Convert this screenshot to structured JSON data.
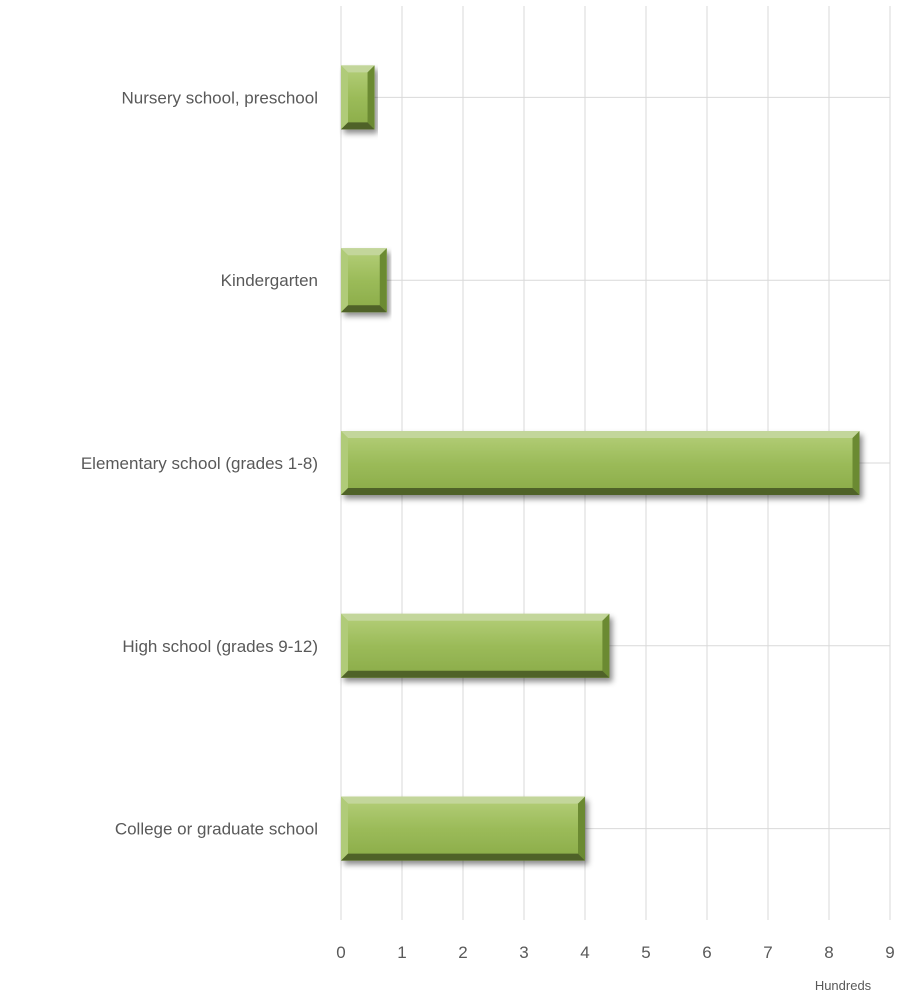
{
  "chart_data": {
    "type": "bar",
    "orientation": "horizontal",
    "categories": [
      "Nursery school, preschool",
      "Kindergarten",
      "Elementary school (grades 1-8)",
      "High school (grades 9-12)",
      "College or graduate school"
    ],
    "values": [
      0.55,
      0.75,
      8.5,
      4.4,
      4.0
    ],
    "xlim": [
      0,
      9
    ],
    "xticks": [
      "0",
      "1",
      "2",
      "3",
      "4",
      "5",
      "6",
      "7",
      "8",
      "9"
    ],
    "unit_label": "Hundreds",
    "grid": true,
    "bar_color": "#9bbb59",
    "bar_highlight": "#c3d69b",
    "bar_shadow": "#4f6228"
  }
}
